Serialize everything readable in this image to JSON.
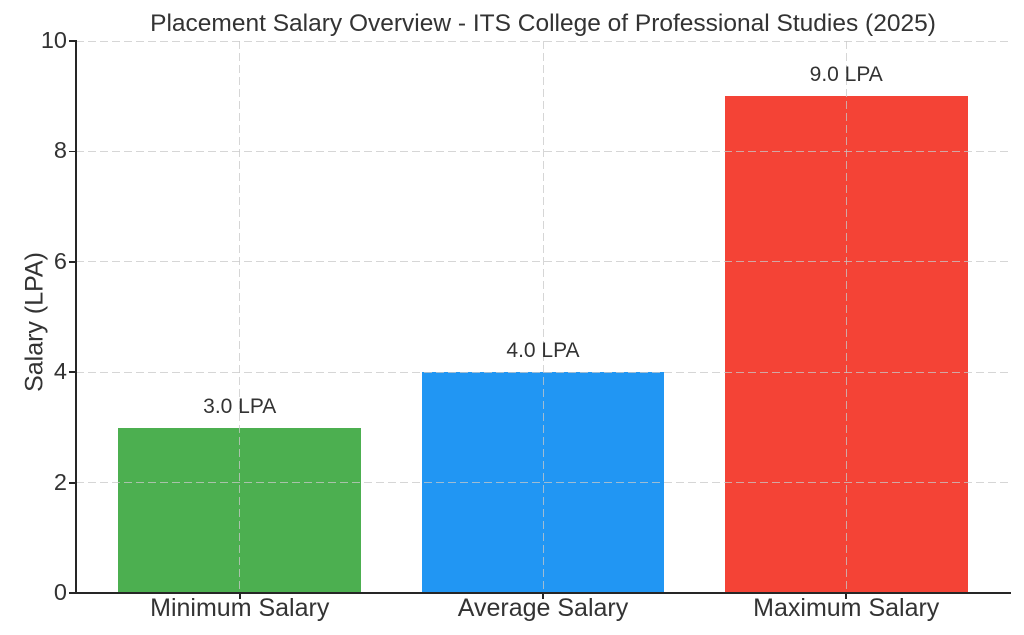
{
  "chart_data": {
    "type": "bar",
    "title": "Placement Salary Overview - ITS College of Professional Studies (2025)",
    "xlabel": "",
    "ylabel": "Salary (LPA)",
    "categories": [
      "Minimum Salary",
      "Average Salary",
      "Maximum Salary"
    ],
    "values": [
      3.0,
      4.0,
      9.0
    ],
    "bar_labels": [
      "3.0 LPA",
      "4.0 LPA",
      "9.0 LPA"
    ],
    "bar_colors": [
      "#4CAF50",
      "#2196F3",
      "#F44336"
    ],
    "yticks": [
      0,
      2,
      4,
      6,
      8,
      10
    ],
    "ylim": [
      0,
      10
    ],
    "xlim": [
      -0.54,
      2.54
    ],
    "bar_width": 0.8,
    "grid": true,
    "grid_style": "dashed",
    "legend": "none"
  },
  "colors": {
    "text": "#333333",
    "grid": "rgba(200,200,200,0.75)",
    "spine": "#262626",
    "background": "#ffffff"
  }
}
